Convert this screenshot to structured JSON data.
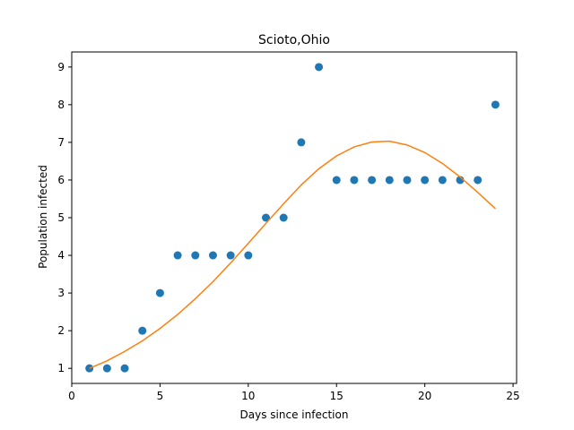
{
  "chart_data": {
    "type": "scatter",
    "title": "Scioto,Ohio",
    "xlabel": "Days since infection",
    "ylabel": "Population infected",
    "xlim": [
      0,
      25.2
    ],
    "ylim": [
      0.6,
      9.4
    ],
    "x_ticks": [
      0,
      5,
      10,
      15,
      20,
      25
    ],
    "y_ticks": [
      1,
      2,
      3,
      4,
      5,
      6,
      7,
      8,
      9
    ],
    "grid": false,
    "legend": "none",
    "series": [
      {
        "kind": "points",
        "color": "#1f77b4",
        "x": [
          1,
          2,
          3,
          4,
          5,
          6,
          7,
          8,
          9,
          10,
          11,
          12,
          13,
          14,
          15,
          16,
          17,
          18,
          19,
          20,
          21,
          22,
          23,
          24
        ],
        "y": [
          1,
          1,
          1,
          2,
          3,
          4,
          4,
          4,
          4,
          4,
          5,
          5,
          7,
          9,
          6,
          6,
          6,
          6,
          6,
          6,
          6,
          6,
          6,
          8
        ]
      },
      {
        "kind": "line",
        "color": "#ff7f0e",
        "x": [
          1,
          2,
          3,
          4,
          5,
          6,
          7,
          8,
          9,
          10,
          11,
          12,
          13,
          14,
          15,
          16,
          17,
          18,
          19,
          20,
          21,
          22,
          23,
          24
        ],
        "y": [
          1.0,
          1.2,
          1.45,
          1.73,
          2.06,
          2.43,
          2.85,
          3.3,
          3.8,
          4.32,
          4.85,
          5.37,
          5.87,
          6.3,
          6.64,
          6.88,
          7.01,
          7.03,
          6.93,
          6.73,
          6.44,
          6.08,
          5.67,
          5.24
        ]
      }
    ]
  }
}
